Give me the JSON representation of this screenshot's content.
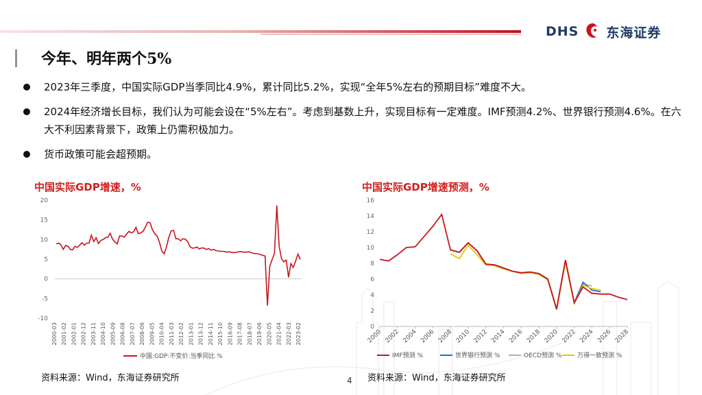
{
  "header": {
    "logo_latin": "DHS",
    "logo_cn": "东海证券"
  },
  "title": "今年、明年两个5%",
  "bullets": [
    "2023年三季度，中国实际GDP当季同比4.9%，累计同比5.2%，实现“全年5%左右的预期目标”难度不大。",
    "2024年经济增长目标，我们认为可能会设在“5%左右”。考虑到基数上升，实现目标有一定难度。IMF预测4.2%、世界银行预测4.6%。在六大不利因素背景下，政策上仍需积极加力。",
    "货币政策可能会超预期。"
  ],
  "left_chart_title": "中国实际GDP增速，%",
  "right_chart_title": "中国实际GDP增速预测，%",
  "source_left": "资料来源：Wind，东海证券研究所",
  "source_right": "资料来源：Wind，东海证券研究所",
  "page_number": "4",
  "chart_data": [
    {
      "type": "line",
      "title": "中国实际GDP增速，%",
      "ylim": [
        -10,
        20
      ],
      "yticks": [
        "20",
        "15",
        "10",
        "5",
        "0",
        "-5",
        "-10"
      ],
      "xtick_labels": [
        "2000-03",
        "2001-02",
        "2002-01",
        "2002-12",
        "2003-11",
        "2004-10",
        "2005-09",
        "2006-08",
        "2007-07",
        "2008-06",
        "2009-05",
        "2010-04",
        "2011-03",
        "2012-02",
        "2013-01",
        "2013-12",
        "2014-11",
        "2015-10",
        "2016-09",
        "2017-08",
        "2018-07",
        "2019-06",
        "2020-05",
        "2021-04",
        "2022-03",
        "2023-02"
      ],
      "legend": [
        "中国:GDP:不变价:当季同比 %"
      ],
      "color": "#c8151d",
      "series": [
        {
          "name": "中国:GDP:不变价:当季同比 %",
          "values": [
            8.9,
            9.1,
            8.7,
            7.5,
            8.5,
            8.3,
            7.5,
            7.4,
            8.3,
            8.0,
            8.6,
            9.2,
            8.6,
            9.1,
            9.1,
            11.1,
            9.5,
            10.5,
            9.0,
            9.8,
            10.0,
            10.5,
            10.6,
            11.6,
            10.1,
            9.4,
            8.9,
            10.9,
            10.9,
            10.6,
            11.4,
            12.1,
            11.7,
            12.0,
            13.1,
            11.5,
            11.7,
            12.1,
            13.2,
            14.4,
            14.3,
            12.5,
            11.5,
            10.9,
            9.3,
            7.1,
            6.4,
            8.2,
            10.6,
            12.2,
            12.3,
            10.2,
            10.2,
            9.7,
            10.2,
            10.1,
            9.5,
            8.2,
            7.8,
            7.9,
            8.1,
            7.6,
            7.9,
            7.8,
            7.5,
            7.7,
            7.3,
            7.5,
            7.2,
            7.1,
            7.0,
            7.0,
            6.9,
            6.8,
            6.9,
            6.7,
            6.7,
            6.8,
            6.9,
            6.9,
            6.8,
            6.8,
            6.9,
            6.7,
            6.5,
            6.4,
            6.4,
            6.2,
            6.0,
            5.8,
            -6.8,
            3.2,
            4.9,
            6.4,
            18.7,
            8.3,
            5.2,
            4.3,
            4.8,
            0.4,
            3.9,
            2.9,
            4.5,
            6.3,
            4.9
          ]
        }
      ]
    },
    {
      "type": "line",
      "title": "中国实际GDP增速预测，%",
      "ylim": [
        0,
        16
      ],
      "yticks": [
        "16",
        "14",
        "12",
        "10",
        "8",
        "6",
        "4",
        "2",
        "0"
      ],
      "x_range": [
        2000,
        2028
      ],
      "xtick_labels": [
        "2000",
        "2002",
        "2004",
        "2006",
        "2008",
        "2010",
        "2012",
        "2014",
        "2016",
        "2018",
        "2020",
        "2022",
        "2024",
        "2026",
        "2028"
      ],
      "series": [
        {
          "name": "IMF预测 %",
          "color": "#c8151d",
          "x": [
            2000,
            2001,
            2002,
            2003,
            2004,
            2005,
            2006,
            2007,
            2008,
            2009,
            2010,
            2011,
            2012,
            2013,
            2014,
            2015,
            2016,
            2017,
            2018,
            2019,
            2020,
            2021,
            2022,
            2023,
            2024,
            2025,
            2026,
            2027,
            2028
          ],
          "values": [
            8.5,
            8.3,
            9.1,
            10.0,
            10.1,
            11.4,
            12.7,
            14.2,
            9.7,
            9.4,
            10.6,
            9.6,
            7.9,
            7.8,
            7.4,
            7.0,
            6.8,
            6.9,
            6.7,
            6.0,
            2.2,
            8.4,
            3.0,
            5.0,
            4.2,
            4.1,
            4.1,
            3.7,
            3.4
          ]
        },
        {
          "name": "世界银行预测 %",
          "color": "#1f6fc8",
          "x": [
            2008,
            2009,
            2010,
            2011,
            2012,
            2013,
            2014,
            2015,
            2016,
            2017,
            2018,
            2019,
            2020,
            2021,
            2022,
            2023,
            2024,
            2025
          ],
          "values": [
            9.7,
            9.4,
            10.6,
            9.6,
            7.9,
            7.8,
            7.4,
            7.0,
            6.8,
            6.9,
            6.7,
            6.0,
            2.2,
            8.4,
            3.0,
            5.6,
            4.6,
            4.4
          ]
        },
        {
          "name": "OECD预测 %",
          "color": "#b0b0b0",
          "x": [
            2008,
            2009,
            2010,
            2011,
            2012,
            2013,
            2014,
            2015,
            2016,
            2017,
            2018,
            2019,
            2020,
            2021,
            2022,
            2023,
            2024
          ],
          "values": [
            9.7,
            9.4,
            10.6,
            9.6,
            7.9,
            7.8,
            7.4,
            7.0,
            6.8,
            6.9,
            6.7,
            6.0,
            2.2,
            8.4,
            3.0,
            5.4,
            5.1
          ]
        },
        {
          "name": "万得一致预测 %",
          "color": "#f2c200",
          "x": [
            2008,
            2009,
            2010,
            2011,
            2012,
            2013,
            2014,
            2015,
            2016,
            2017,
            2018,
            2019,
            2020,
            2021,
            2022,
            2023,
            2024,
            2025
          ],
          "values": [
            9.2,
            8.6,
            10.3,
            9.1,
            7.8,
            7.7,
            7.3,
            7.0,
            6.7,
            6.8,
            6.6,
            5.9,
            2.1,
            8.2,
            2.9,
            5.2,
            4.8,
            4.6
          ]
        }
      ]
    }
  ]
}
